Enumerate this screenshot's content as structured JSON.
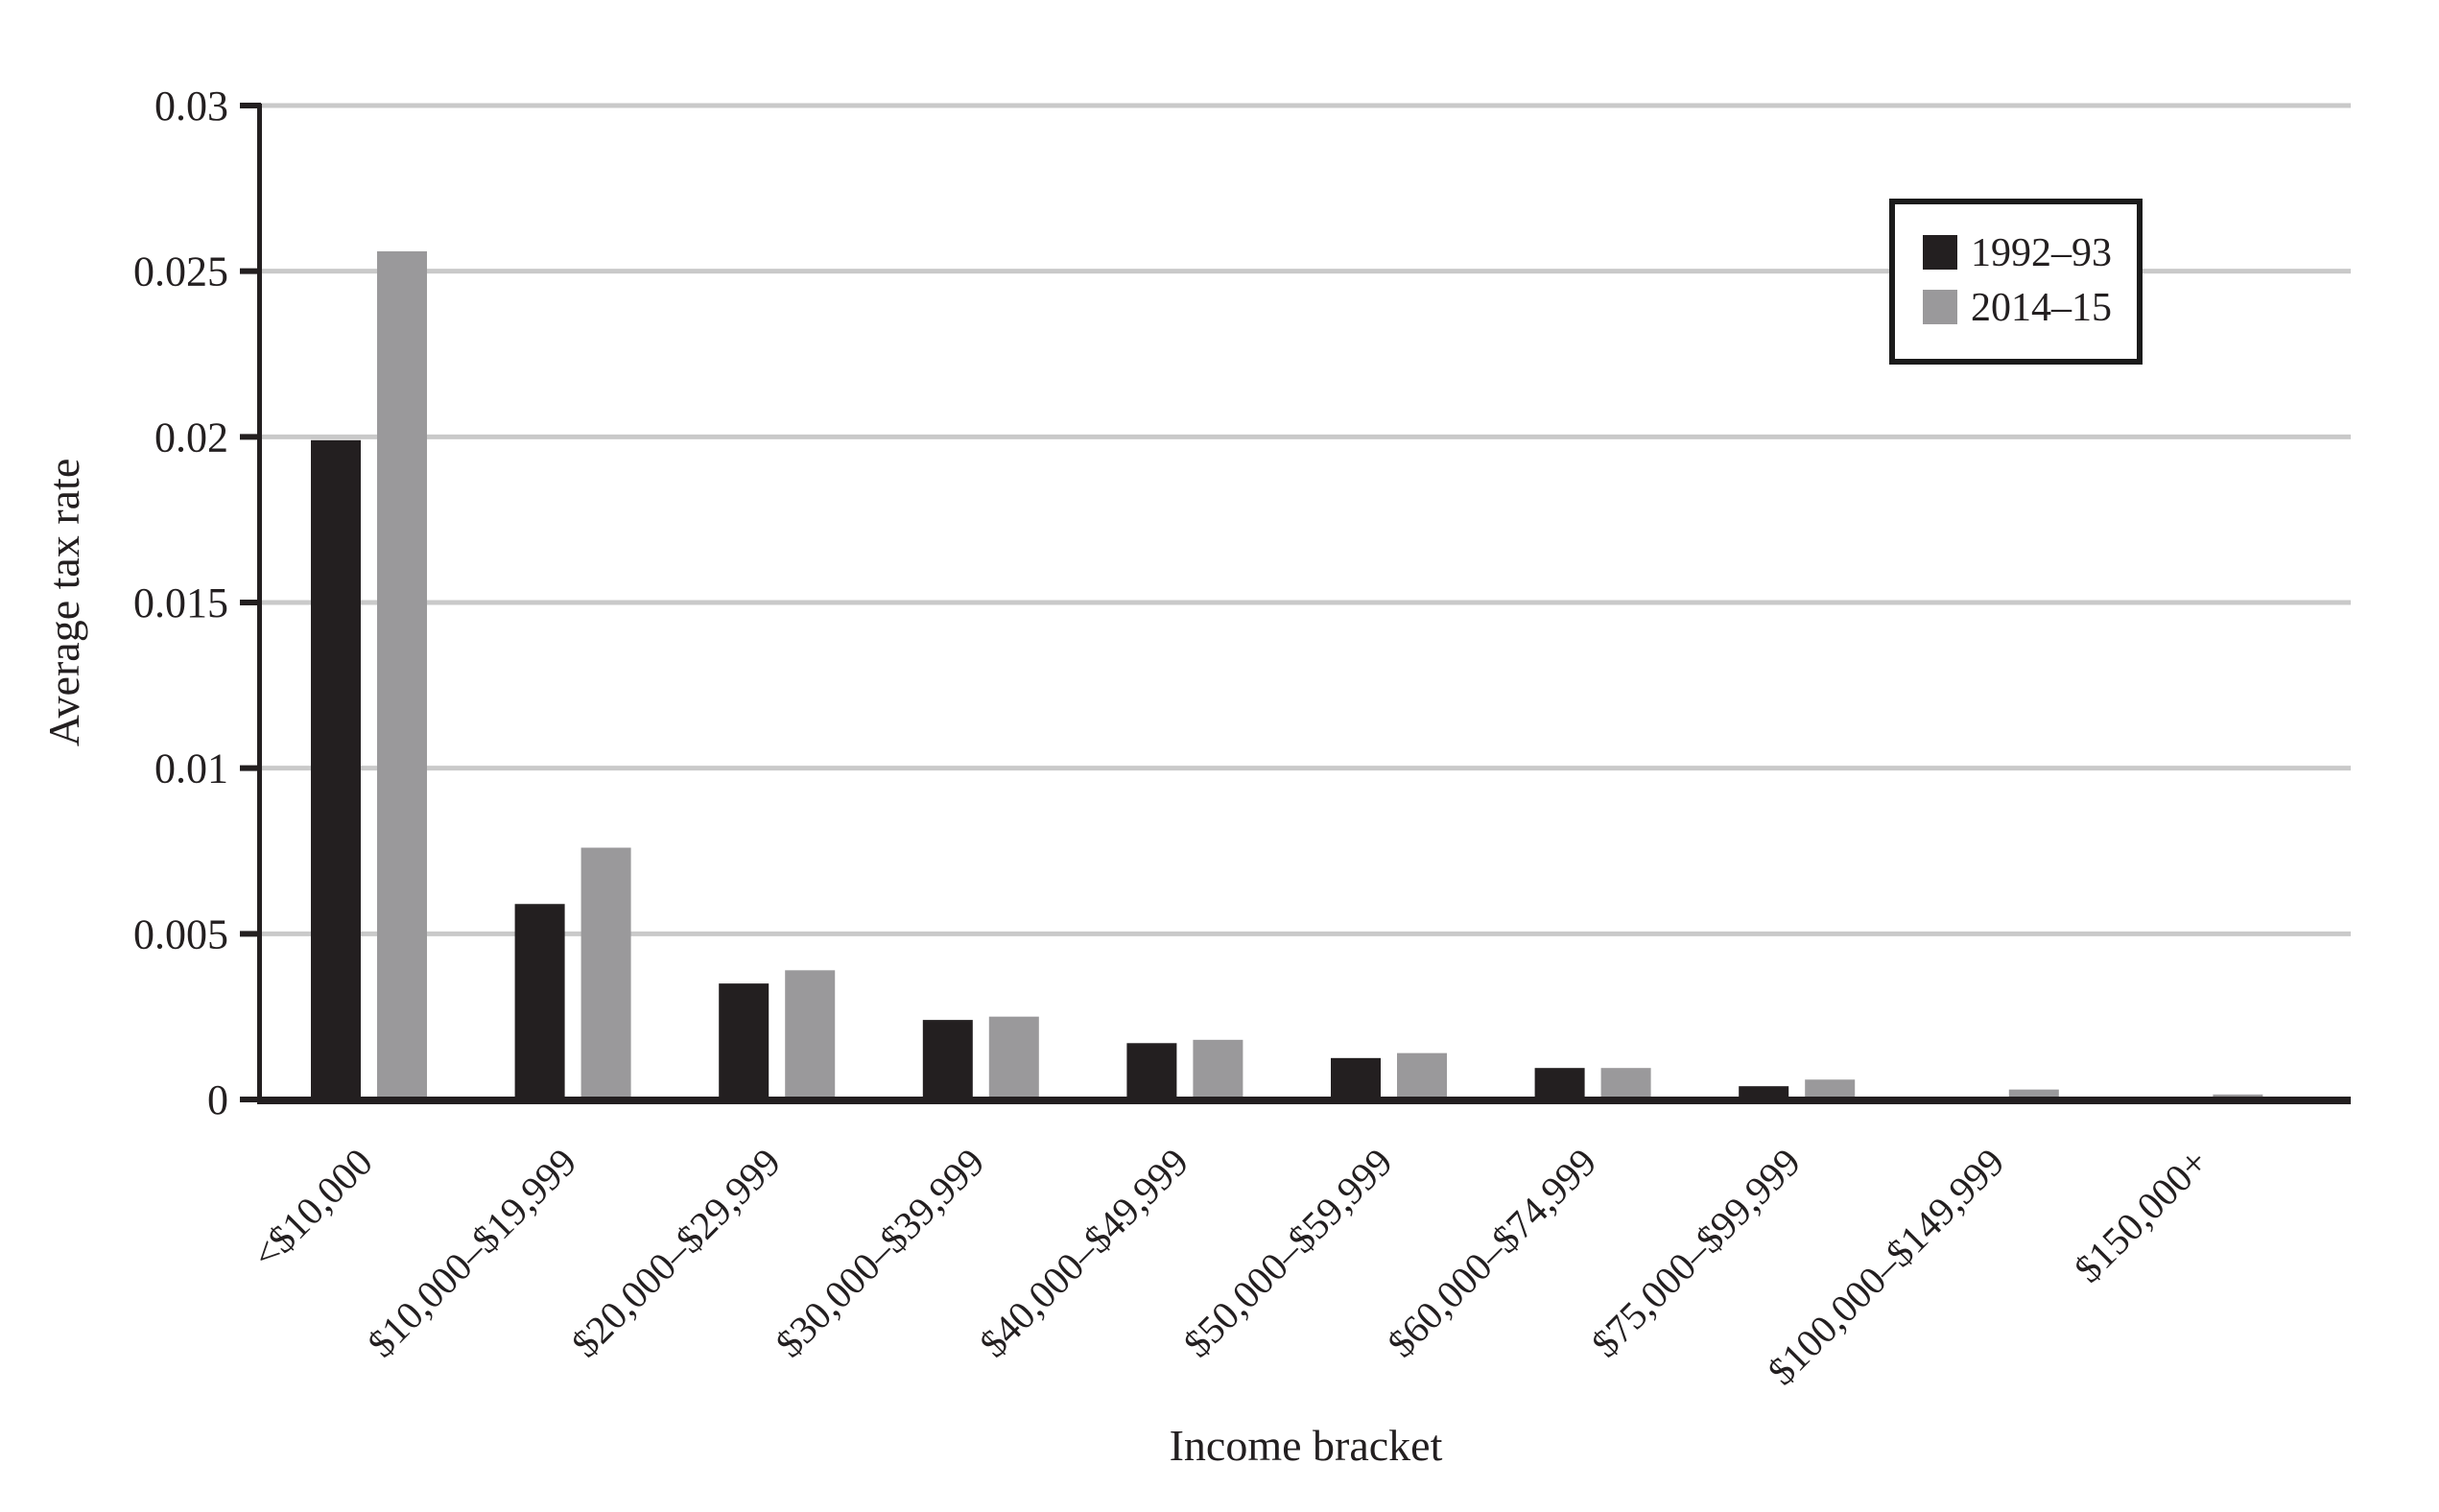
{
  "figure": {
    "background": "#ffffff",
    "text_color": "#231f20",
    "gridline_color": "#c9c9c9"
  },
  "legend": {
    "items": [
      {
        "label": "1992–93",
        "color": "#231f20"
      },
      {
        "label": "2014–15",
        "color": "#9a999b"
      }
    ]
  },
  "chart_data": {
    "type": "bar",
    "title": "",
    "xlabel": "Income bracket",
    "ylabel": "Average tax rate",
    "categories": [
      "<$10,000",
      "$10,000–$19,999",
      "$20,000–$29,999",
      "$30,000–$39,999",
      "$40,000–$49,999",
      "$50,000–$59,999",
      "$60,000–$74,999",
      "$75,000–$99,999",
      "$100,000–$149,999",
      "$150,000+"
    ],
    "series": [
      {
        "name": "1992–93",
        "color": "#231f20",
        "values": [
          0.0199,
          0.0059,
          0.0035,
          0.0024,
          0.0017,
          0.00125,
          0.00095,
          0.0004,
          0,
          0
        ]
      },
      {
        "name": "2014–15",
        "color": "#9a999b",
        "values": [
          0.0256,
          0.0076,
          0.0039,
          0.0025,
          0.0018,
          0.0014,
          0.00095,
          0.0006,
          0.0003,
          0.00015
        ]
      }
    ],
    "ylim": [
      0,
      0.03
    ],
    "yticks": [
      0,
      0.005,
      0.01,
      0.015,
      0.02,
      0.025,
      0.03
    ],
    "ytick_labels": [
      "0",
      "0.005",
      "0.01",
      "0.015",
      "0.02",
      "0.025",
      "0.03"
    ],
    "grid": "horizontal",
    "legend_position": "upper right"
  }
}
